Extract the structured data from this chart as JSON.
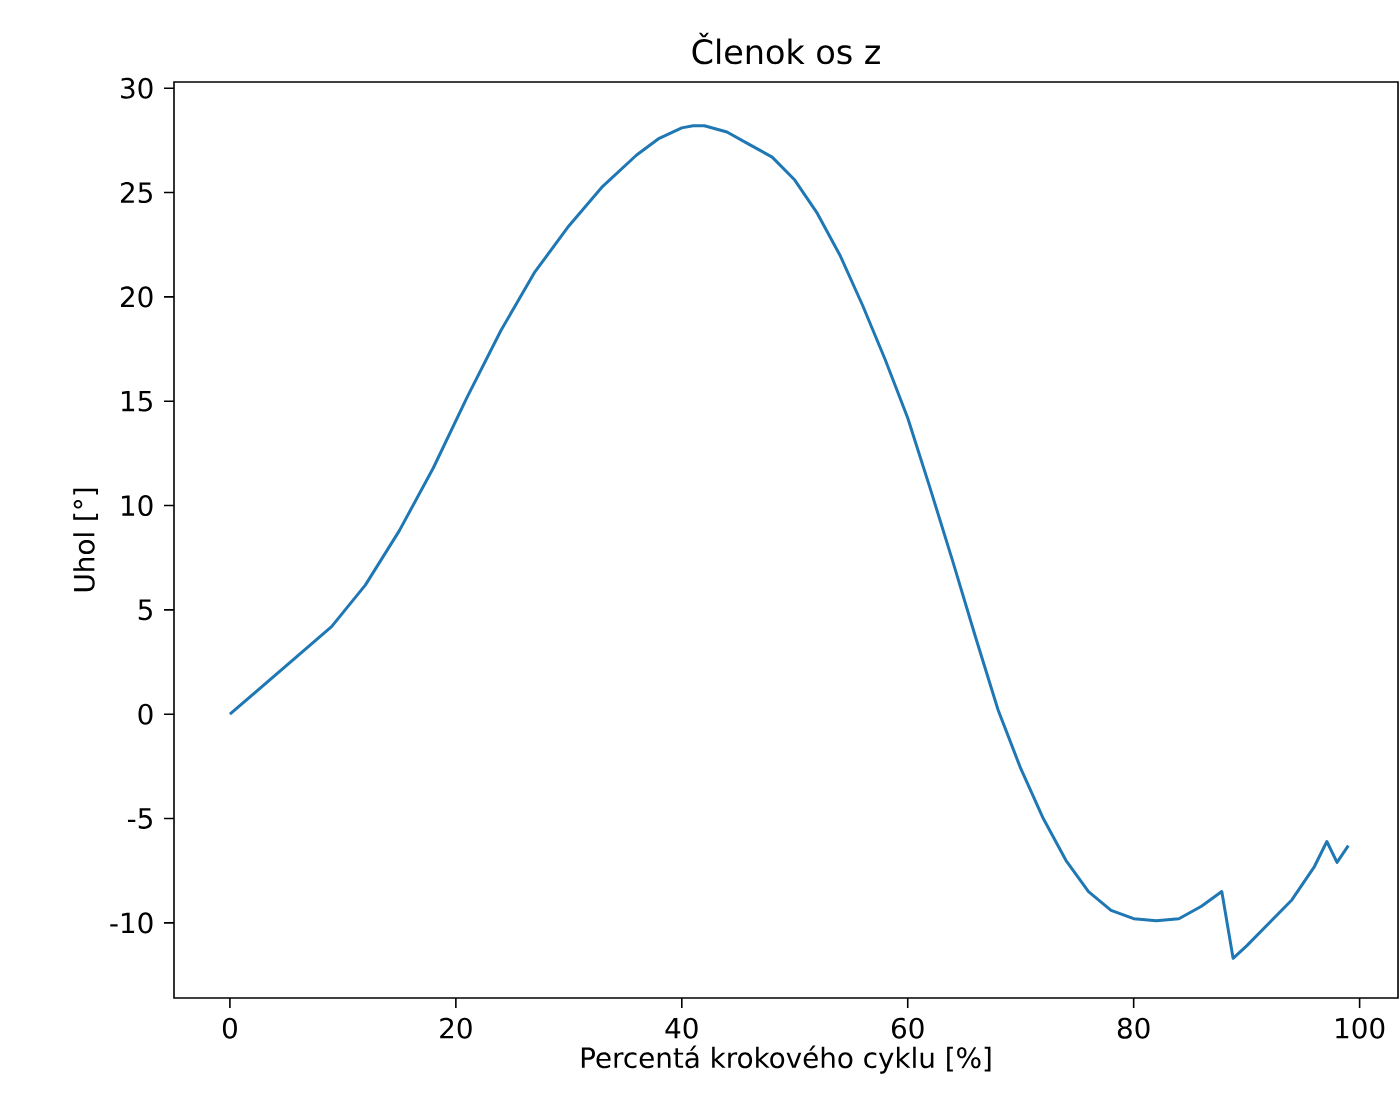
{
  "chart_data": {
    "type": "line",
    "title": "Členok os z",
    "xlabel": "Percentá krokového cyklu [%]",
    "ylabel": "Uhol [°]",
    "x": [
      0,
      3,
      6,
      9,
      12,
      15,
      18,
      21,
      24,
      27,
      30,
      33,
      36,
      38,
      40,
      41,
      42,
      44,
      46,
      48,
      50,
      52,
      54,
      56,
      58,
      60,
      62,
      64,
      66,
      68,
      70,
      72,
      74,
      76,
      78,
      80,
      82,
      84,
      86,
      87.8,
      88.8,
      90,
      92,
      94,
      96,
      97.1,
      98,
      99
    ],
    "series": [
      {
        "color": "#1f77b4",
        "values": [
          0,
          1.4,
          2.8,
          4.2,
          6.2,
          8.8,
          11.8,
          15.2,
          18.4,
          21.2,
          23.4,
          25.3,
          26.8,
          27.6,
          28.1,
          28.2,
          28.2,
          27.9,
          27.3,
          26.7,
          25.6,
          24.0,
          22.0,
          19.6,
          17.0,
          14.2,
          10.8,
          7.3,
          3.7,
          0.2,
          -2.6,
          -5.0,
          -7.0,
          -8.5,
          -9.4,
          -9.8,
          -9.9,
          -9.8,
          -9.2,
          -8.5,
          -11.7,
          -11.1,
          -10.0,
          -8.9,
          -7.3,
          -6.1,
          -7.1,
          -6.3
        ]
      }
    ],
    "xlim": [
      -4.95,
      103.4
    ],
    "ylim": [
      -13.6,
      30.3
    ],
    "xticks": [
      0,
      20,
      40,
      60,
      80,
      100
    ],
    "yticks": [
      -10,
      -5,
      0,
      5,
      10,
      15,
      20,
      25,
      30
    ],
    "marker": "none",
    "line_style": "solid"
  }
}
